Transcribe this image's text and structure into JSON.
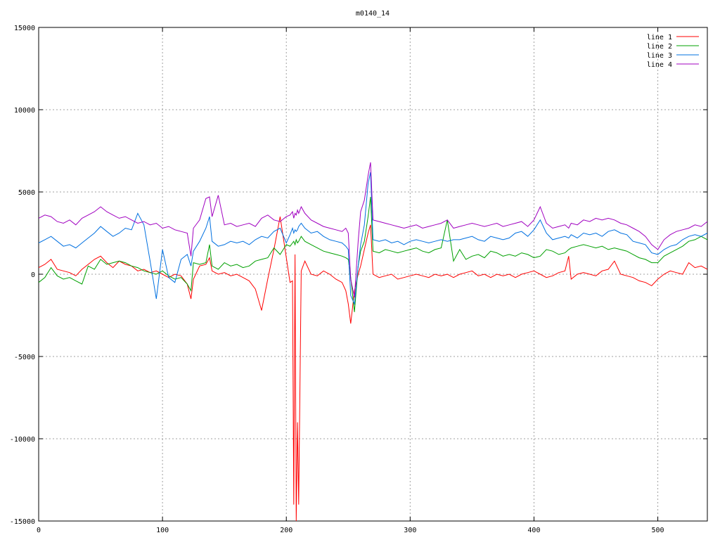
{
  "chart_data": {
    "type": "line",
    "title": "m0140_14",
    "xlabel": "",
    "ylabel": "",
    "xlim": [
      0,
      540
    ],
    "ylim": [
      -15000,
      15000
    ],
    "xticks": [
      0,
      100,
      200,
      300,
      400,
      500
    ],
    "yticks": [
      -15000,
      -10000,
      -5000,
      0,
      5000,
      10000,
      15000
    ],
    "grid": true,
    "legend_position": "top-right",
    "x": [
      0,
      5,
      10,
      15,
      20,
      25,
      30,
      35,
      40,
      45,
      50,
      55,
      60,
      65,
      70,
      75,
      80,
      85,
      90,
      95,
      100,
      105,
      110,
      115,
      120,
      123,
      125,
      130,
      135,
      138,
      140,
      145,
      150,
      155,
      160,
      165,
      170,
      175,
      180,
      185,
      190,
      195,
      200,
      203,
      205,
      206,
      207,
      208,
      209,
      210,
      212,
      215,
      220,
      225,
      230,
      235,
      240,
      245,
      248,
      250,
      252,
      255,
      258,
      260,
      263,
      266,
      268,
      270,
      275,
      280,
      285,
      290,
      295,
      300,
      305,
      310,
      315,
      320,
      325,
      330,
      335,
      340,
      345,
      350,
      355,
      360,
      365,
      370,
      375,
      380,
      385,
      390,
      395,
      400,
      405,
      410,
      415,
      420,
      425,
      428,
      430,
      435,
      440,
      445,
      450,
      455,
      460,
      465,
      470,
      475,
      480,
      485,
      490,
      495,
      500,
      505,
      510,
      515,
      520,
      525,
      530,
      535,
      540
    ],
    "series": [
      {
        "name": "line 1",
        "color": "#ff0000",
        "values": [
          400,
          600,
          900,
          300,
          200,
          100,
          -100,
          300,
          600,
          900,
          1100,
          700,
          400,
          800,
          600,
          500,
          200,
          300,
          100,
          200,
          0,
          -200,
          0,
          -100,
          -600,
          -1500,
          -300,
          500,
          600,
          1000,
          200,
          0,
          100,
          -100,
          0,
          -200,
          -400,
          -900,
          -2200,
          -300,
          1500,
          3500,
          1000,
          -500,
          -400,
          -14000,
          1200,
          -15000,
          -9000,
          -14000,
          200,
          800,
          0,
          -100,
          200,
          0,
          -300,
          -500,
          -1000,
          -1800,
          -3000,
          -1000,
          0,
          500,
          1500,
          2500,
          3000,
          0,
          -200,
          -100,
          0,
          -300,
          -200,
          -100,
          0,
          -100,
          -200,
          0,
          -100,
          0,
          -200,
          0,
          100,
          200,
          -100,
          0,
          -200,
          0,
          -100,
          0,
          -200,
          0,
          100,
          200,
          0,
          -200,
          -100,
          100,
          200,
          1100,
          -300,
          0,
          100,
          0,
          -100,
          200,
          300,
          800,
          0,
          -100,
          -200,
          -400,
          -500,
          -700,
          -300,
          0,
          200,
          100,
          0,
          700,
          400,
          500,
          300
        ]
      },
      {
        "name": "line 2",
        "color": "#00a000",
        "values": [
          -500,
          -200,
          400,
          -100,
          -300,
          -200,
          -400,
          -600,
          500,
          300,
          900,
          600,
          700,
          800,
          700,
          500,
          400,
          200,
          100,
          0,
          200,
          -100,
          -300,
          -200,
          -600,
          -1000,
          700,
          600,
          700,
          1800,
          500,
          300,
          700,
          500,
          600,
          400,
          500,
          800,
          900,
          1000,
          1600,
          1200,
          1800,
          1700,
          1900,
          2000,
          1800,
          2100,
          1900,
          2000,
          2300,
          2000,
          1800,
          1600,
          1400,
          1300,
          1200,
          1100,
          1000,
          900,
          -200,
          -2300,
          500,
          1400,
          2000,
          3500,
          4700,
          1400,
          1300,
          1500,
          1400,
          1300,
          1400,
          1500,
          1600,
          1400,
          1300,
          1500,
          1600,
          3300,
          800,
          1500,
          900,
          1100,
          1200,
          1000,
          1400,
          1300,
          1100,
          1200,
          1100,
          1300,
          1200,
          1000,
          1100,
          1500,
          1400,
          1200,
          1300,
          1500,
          1600,
          1700,
          1800,
          1700,
          1600,
          1700,
          1500,
          1600,
          1500,
          1400,
          1200,
          1000,
          900,
          700,
          700,
          1100,
          1300,
          1500,
          1700,
          2000,
          2100,
          2300,
          2100
        ]
      },
      {
        "name": "line 3",
        "color": "#0070e0",
        "values": [
          1900,
          2100,
          2300,
          2000,
          1700,
          1800,
          1600,
          1900,
          2200,
          2500,
          2900,
          2600,
          2300,
          2500,
          2800,
          2700,
          3700,
          3000,
          800,
          -1500,
          1500,
          -200,
          -500,
          900,
          1200,
          500,
          1400,
          2000,
          2800,
          3500,
          2000,
          1700,
          1800,
          2000,
          1900,
          2000,
          1800,
          2100,
          2300,
          2200,
          2600,
          2800,
          1900,
          2400,
          2800,
          2500,
          2700,
          2600,
          2700,
          2900,
          3100,
          2800,
          2500,
          2600,
          2300,
          2100,
          2000,
          1900,
          1700,
          1500,
          -1300,
          -1800,
          500,
          1800,
          3000,
          5500,
          6200,
          2100,
          2000,
          2100,
          1900,
          2000,
          1800,
          2000,
          2100,
          2000,
          1900,
          2000,
          2100,
          2000,
          2100,
          2100,
          2200,
          2300,
          2100,
          2000,
          2300,
          2200,
          2100,
          2200,
          2500,
          2600,
          2300,
          2700,
          3300,
          2500,
          2100,
          2200,
          2300,
          2200,
          2400,
          2200,
          2500,
          2400,
          2500,
          2300,
          2600,
          2700,
          2500,
          2400,
          2000,
          1900,
          1800,
          1300,
          1200,
          1500,
          1700,
          1800,
          2100,
          2300,
          2400,
          2300,
          2500
        ]
      },
      {
        "name": "line 4",
        "color": "#a000c0",
        "values": [
          3400,
          3600,
          3500,
          3200,
          3100,
          3300,
          3000,
          3400,
          3600,
          3800,
          4100,
          3800,
          3600,
          3400,
          3500,
          3300,
          3100,
          3200,
          3000,
          3100,
          2800,
          2900,
          2700,
          2600,
          2500,
          1100,
          2800,
          3300,
          4600,
          4700,
          3500,
          4800,
          3000,
          3100,
          2900,
          3000,
          3100,
          2900,
          3400,
          3600,
          3300,
          3200,
          3500,
          3600,
          3800,
          3400,
          3700,
          3600,
          3900,
          3700,
          4100,
          3700,
          3300,
          3100,
          2900,
          2800,
          2700,
          2600,
          2800,
          2500,
          -300,
          -1400,
          2000,
          3800,
          4500,
          6000,
          6800,
          3300,
          3200,
          3100,
          3000,
          2900,
          2800,
          2900,
          3000,
          2800,
          2900,
          3000,
          3100,
          3300,
          2800,
          2900,
          3000,
          3100,
          3000,
          2900,
          3000,
          3100,
          2900,
          3000,
          3100,
          3200,
          2900,
          3300,
          4100,
          3100,
          2800,
          2900,
          3000,
          2800,
          3100,
          3000,
          3300,
          3200,
          3400,
          3300,
          3400,
          3300,
          3100,
          3000,
          2800,
          2600,
          2300,
          1800,
          1500,
          2100,
          2400,
          2600,
          2700,
          2800,
          3000,
          2900,
          3200
        ]
      }
    ]
  }
}
